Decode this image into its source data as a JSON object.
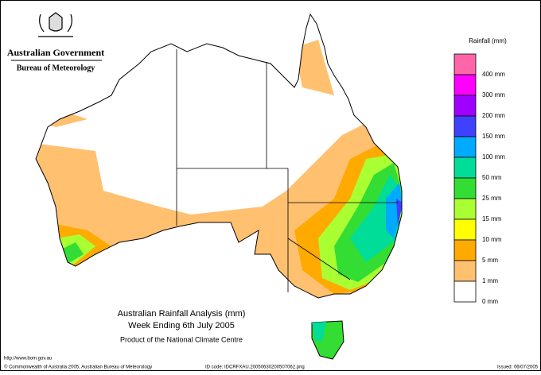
{
  "header": {
    "agency": "Australian Government",
    "bureau": "Bureau of Meteorology"
  },
  "legend": {
    "title": "Rainfall (mm)",
    "items": [
      {
        "color": "#ff66aa",
        "label": "400 mm"
      },
      {
        "color": "#ff00ff",
        "label": "300 mm"
      },
      {
        "color": "#a000ff",
        "label": "200 mm"
      },
      {
        "color": "#4040ff",
        "label": "150 mm"
      },
      {
        "color": "#00aaff",
        "label": "100 mm"
      },
      {
        "color": "#00dd99",
        "label": "50 mm"
      },
      {
        "color": "#33dd33",
        "label": "25 mm"
      },
      {
        "color": "#aaff33",
        "label": "15 mm"
      },
      {
        "color": "#ffff00",
        "label": "10 mm"
      },
      {
        "color": "#ffaa00",
        "label": "5 mm"
      },
      {
        "color": "#ffc070",
        "label": "1 mm"
      },
      {
        "color": "#ffffff",
        "label": "0 mm"
      }
    ]
  },
  "caption": {
    "title": "Australian Rainfall Analysis (mm)",
    "period": "Week Ending 6th July 2005",
    "product": "Product of the National Climate Centre"
  },
  "footer": {
    "url": "http://www.bom.gov.au",
    "copyright": "© Commonwealth of Australia 2005, Australian Bureau of Meteorology",
    "id_code": "ID code: IDCRFXAU.20050630200507062.png",
    "issued": "Issued: 06/07/2005"
  }
}
